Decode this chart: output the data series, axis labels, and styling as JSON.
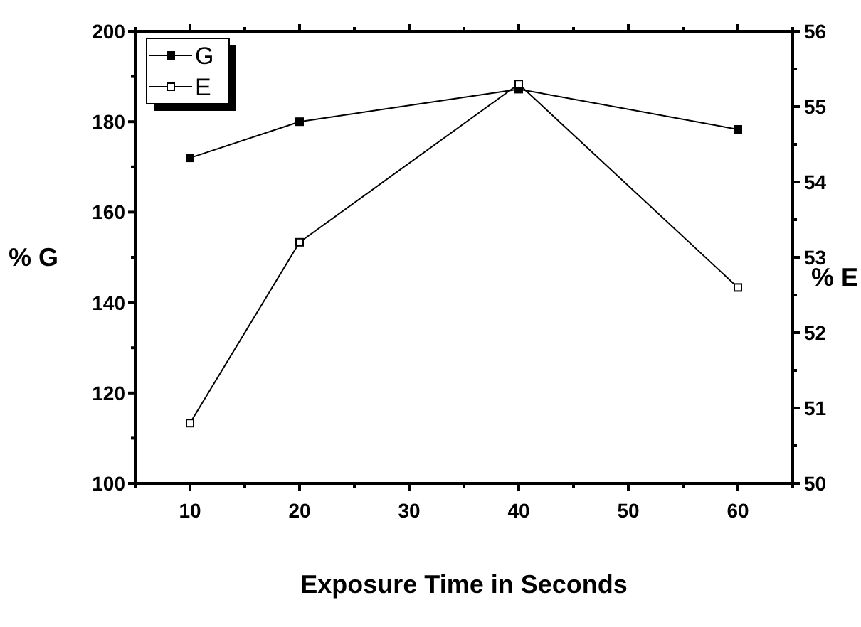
{
  "chart_data": {
    "type": "line",
    "xlabel": "Exposure Time in Seconds",
    "ylabel": "% G",
    "y2label": "% E",
    "x": [
      10,
      20,
      40,
      60
    ],
    "series": [
      {
        "name": "G",
        "color": "#000000",
        "values": [
          172,
          180,
          187.2,
          178.3
        ],
        "marker": "square"
      },
      {
        "name": "E",
        "color": "#000000",
        "values": [
          50.8,
          53.2,
          55.3,
          52.6
        ],
        "axis": "y2",
        "marker": "square-open"
      }
    ],
    "xlim": [
      5,
      65
    ],
    "xticks": [
      {
        "value": 5,
        "label": null
      },
      10,
      {
        "value": 15,
        "label": null
      },
      20,
      {
        "value": 25,
        "label": null
      },
      30,
      {
        "value": 35,
        "label": null
      },
      40,
      {
        "value": 45,
        "label": null
      },
      50,
      {
        "value": 55,
        "label": null
      },
      60,
      {
        "value": 65,
        "label": null
      }
    ],
    "ylim": [
      100,
      200
    ],
    "yticks": [
      100,
      {
        "value": 110,
        "label": null
      },
      120,
      {
        "value": 130,
        "label": null
      },
      140,
      {
        "value": 150,
        "label": null
      },
      160,
      {
        "value": 170,
        "label": null
      },
      180,
      {
        "value": 190,
        "label": null
      },
      200
    ],
    "y2lim": [
      50,
      56
    ],
    "y2ticks": [
      50,
      {
        "value": 50.5,
        "label": null
      },
      51,
      {
        "value": 51.5,
        "label": null
      },
      52,
      {
        "value": 52.5,
        "label": null
      },
      53,
      {
        "value": 53.5,
        "label": null
      },
      54,
      {
        "value": 54.5,
        "label": null
      },
      55,
      {
        "value": 55.5,
        "label": null
      },
      56
    ],
    "grid": false,
    "legend": "top left",
    "line_style": "solid"
  }
}
